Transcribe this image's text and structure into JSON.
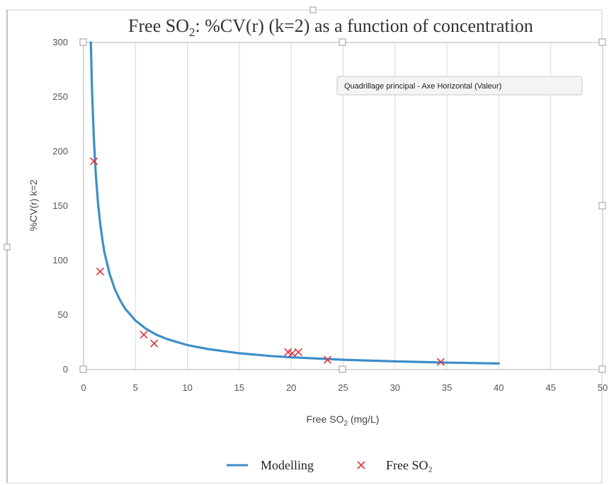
{
  "chart_data": {
    "type": "scatter",
    "title_prefix": "Free SO",
    "title_sub": "2",
    "title_suffix": ": %CV(r) (k=2) as a function of concentration",
    "xlabel_prefix": "Free SO",
    "xlabel_sub": "2",
    "xlabel_suffix": " (mg/L)",
    "ylabel": "%CV(r) k=2",
    "xlim": [
      0,
      50
    ],
    "ylim": [
      0,
      300
    ],
    "x_ticks": [
      0,
      5,
      10,
      15,
      20,
      25,
      30,
      35,
      40,
      45,
      50
    ],
    "y_ticks": [
      0,
      50,
      100,
      150,
      200,
      250,
      300
    ],
    "grid": "vertical major gridlines",
    "legend_position": "bottom",
    "series": [
      {
        "name": "Modelling",
        "kind": "line",
        "color": "#3e8ec9",
        "x": [
          0.7,
          0.8,
          0.9,
          1.0,
          1.1,
          1.2,
          1.4,
          1.6,
          1.8,
          2.0,
          2.5,
          3.0,
          3.5,
          4,
          5,
          6,
          7,
          8,
          10,
          12,
          15,
          18,
          20,
          25,
          30,
          35,
          40
        ],
        "y": [
          300,
          262,
          234,
          210,
          192,
          176,
          152,
          134,
          120,
          108,
          88,
          74,
          64,
          56,
          45,
          37.5,
          32.1,
          28.1,
          22.5,
          18.8,
          15.0,
          12.5,
          11.3,
          9.0,
          7.5,
          6.4,
          5.6
        ]
      },
      {
        "name": "Free SO₂",
        "kind": "scatter",
        "marker": "x",
        "color": "#e0303b",
        "x": [
          1.0,
          1.6,
          5.8,
          6.8,
          19.7,
          20.1,
          20.7,
          23.5,
          34.4
        ],
        "y": [
          191,
          90,
          32,
          24,
          16,
          15,
          16,
          9,
          7
        ]
      }
    ]
  },
  "tooltip": {
    "text": "Quadrillage principal - Axe Horizontal (Valeur)"
  },
  "colors": {
    "gridline": "#d9d9d9",
    "plot_border": "#b5b5b5"
  }
}
